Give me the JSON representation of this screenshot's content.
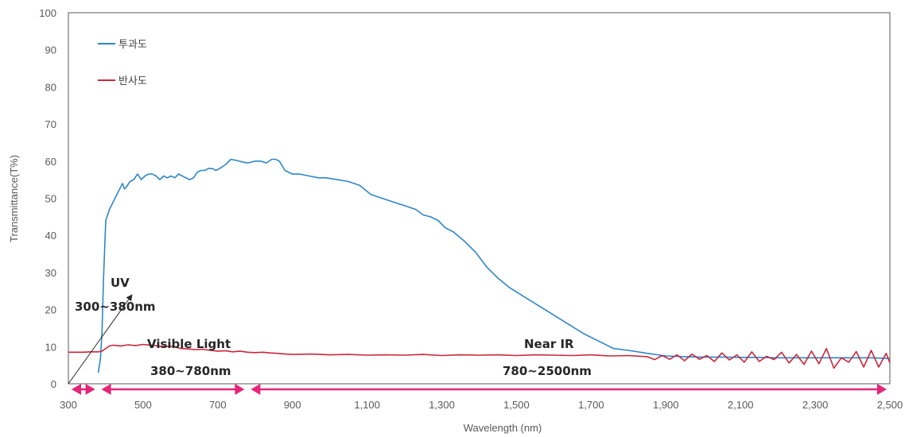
{
  "chart_data": {
    "type": "line",
    "title": "",
    "xlabel": "Wavelength (nm)",
    "ylabel": "Transmittance(T%)",
    "xlim": [
      300,
      2500
    ],
    "ylim": [
      0,
      100
    ],
    "x_ticks": [
      300,
      500,
      700,
      900,
      1100,
      1300,
      1500,
      1700,
      1900,
      2100,
      2300,
      2500
    ],
    "x_tick_labels": [
      "300",
      "500",
      "700",
      "900",
      "1,100",
      "1,300",
      "1,500",
      "1,700",
      "1,900",
      "2,100",
      "2,300",
      "2,500"
    ],
    "y_ticks": [
      0,
      10,
      20,
      30,
      40,
      50,
      60,
      70,
      80,
      90,
      100
    ],
    "grid": false,
    "legend_position": "top-left",
    "series": [
      {
        "name": "투과도",
        "color": "#2E86C8",
        "x": [
          380,
          386,
          390,
          394,
          400,
          410,
          420,
          430,
          445,
          450,
          455,
          465,
          475,
          485,
          495,
          505,
          515,
          525,
          535,
          545,
          555,
          565,
          575,
          585,
          595,
          605,
          615,
          625,
          635,
          645,
          655,
          665,
          675,
          685,
          695,
          705,
          720,
          735,
          750,
          765,
          780,
          800,
          815,
          830,
          840,
          845,
          855,
          865,
          880,
          900,
          920,
          945,
          970,
          990,
          1020,
          1050,
          1080,
          1110,
          1140,
          1170,
          1200,
          1230,
          1250,
          1270,
          1290,
          1310,
          1330,
          1360,
          1390,
          1420,
          1450,
          1480,
          1520,
          1560,
          1600,
          1640,
          1680,
          1720,
          1760,
          1800,
          1850,
          1900,
          1950,
          2000,
          2050,
          2100,
          2150,
          2200,
          2250,
          2300,
          2350,
          2400,
          2450,
          2500
        ],
        "y": [
          3,
          7,
          14,
          28,
          44,
          47,
          49,
          51,
          54,
          52.5,
          53,
          54.5,
          55,
          56.5,
          55,
          56,
          56.5,
          56.5,
          56,
          55,
          56,
          55.5,
          56,
          55.5,
          56.5,
          56,
          55.5,
          55,
          55.5,
          57,
          57.5,
          57.5,
          58,
          58,
          57.5,
          58,
          59,
          60.5,
          60.2,
          59.8,
          59.5,
          60,
          60,
          59.5,
          60.2,
          60.5,
          60.5,
          60,
          57.5,
          56.5,
          56.5,
          56,
          55.5,
          55.5,
          55,
          54.5,
          53.5,
          51,
          50,
          49,
          48,
          47,
          45.5,
          45,
          44,
          42,
          41,
          38.5,
          35.5,
          31.5,
          28.5,
          26,
          23.5,
          21,
          18.5,
          16,
          13.5,
          11.5,
          9.5,
          9,
          8.2,
          7.5,
          7.3,
          7.2,
          7.2,
          7.1,
          7.1,
          7.0,
          7.0,
          7.0,
          7.0,
          7.0,
          7.0,
          6.8
        ]
      },
      {
        "name": "반사도",
        "color": "#C8283C",
        "x": [
          300,
          320,
          340,
          360,
          380,
          390,
          400,
          410,
          420,
          440,
          460,
          480,
          500,
          520,
          540,
          560,
          580,
          600,
          620,
          640,
          660,
          680,
          700,
          720,
          740,
          760,
          780,
          800,
          820,
          840,
          860,
          880,
          900,
          950,
          1000,
          1050,
          1100,
          1150,
          1200,
          1250,
          1300,
          1350,
          1400,
          1450,
          1500,
          1550,
          1600,
          1650,
          1700,
          1750,
          1800,
          1850,
          1870,
          1890,
          1910,
          1930,
          1950,
          1970,
          1990,
          2010,
          2030,
          2050,
          2070,
          2090,
          2110,
          2130,
          2150,
          2170,
          2190,
          2210,
          2230,
          2250,
          2270,
          2290,
          2310,
          2330,
          2350,
          2370,
          2390,
          2410,
          2430,
          2450,
          2470,
          2490,
          2500
        ],
        "y": [
          8.5,
          8.5,
          8.5,
          8.6,
          8.6,
          8.8,
          9.5,
          10.2,
          10.4,
          10.2,
          10.5,
          10.3,
          10.6,
          10.4,
          10.2,
          10.0,
          10.1,
          9.5,
          9.4,
          9.2,
          9.3,
          9.0,
          8.8,
          8.9,
          8.6,
          8.8,
          8.5,
          8.4,
          8.5,
          8.3,
          8.2,
          8.0,
          7.9,
          8.0,
          7.8,
          7.9,
          7.7,
          7.8,
          7.7,
          7.9,
          7.6,
          7.8,
          7.7,
          7.8,
          7.6,
          7.8,
          7.7,
          7.6,
          7.8,
          7.5,
          7.6,
          7.3,
          6.5,
          7.6,
          6.6,
          7.8,
          6.2,
          8.0,
          6.6,
          7.6,
          6.0,
          8.3,
          6.4,
          7.8,
          5.8,
          8.6,
          6.0,
          7.4,
          6.5,
          8.5,
          5.6,
          7.9,
          5.2,
          8.8,
          5.4,
          9.5,
          4.2,
          7.0,
          5.8,
          8.7,
          4.5,
          9.0,
          4.5,
          8.2,
          5.6
        ]
      }
    ],
    "annotations": [
      {
        "line1": "UV",
        "line2": "300~380nm",
        "x1": 300,
        "x2": 380
      },
      {
        "line1": "Visible Light",
        "line2": "380~780nm",
        "x1": 380,
        "x2": 780
      },
      {
        "line1": "Near IR",
        "line2": "780~2500nm",
        "x1": 780,
        "x2": 2500
      }
    ],
    "range_arrow_color": "#E6257A",
    "axis_color": "#595959"
  }
}
